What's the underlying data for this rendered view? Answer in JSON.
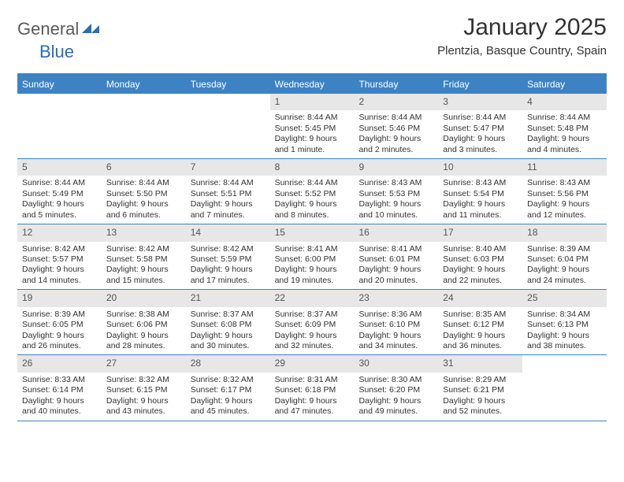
{
  "logo": {
    "general": "General",
    "blue": "Blue"
  },
  "title": "January 2025",
  "subtitle": "Plentzia, Basque Country, Spain",
  "colors": {
    "header_bar": "#3d83c4",
    "daynum_bg": "#e7e7e8",
    "text": "#333333",
    "logo_gray": "#5a5a5a",
    "logo_blue": "#2a6db8",
    "rule": "#3d83c4"
  },
  "weekdays": [
    "Sunday",
    "Monday",
    "Tuesday",
    "Wednesday",
    "Thursday",
    "Friday",
    "Saturday"
  ],
  "weeks": [
    [
      {
        "empty": true
      },
      {
        "empty": true
      },
      {
        "empty": true
      },
      {
        "n": "1",
        "sr": "Sunrise: 8:44 AM",
        "ss": "Sunset: 5:45 PM",
        "d1": "Daylight: 9 hours",
        "d2": "and 1 minute."
      },
      {
        "n": "2",
        "sr": "Sunrise: 8:44 AM",
        "ss": "Sunset: 5:46 PM",
        "d1": "Daylight: 9 hours",
        "d2": "and 2 minutes."
      },
      {
        "n": "3",
        "sr": "Sunrise: 8:44 AM",
        "ss": "Sunset: 5:47 PM",
        "d1": "Daylight: 9 hours",
        "d2": "and 3 minutes."
      },
      {
        "n": "4",
        "sr": "Sunrise: 8:44 AM",
        "ss": "Sunset: 5:48 PM",
        "d1": "Daylight: 9 hours",
        "d2": "and 4 minutes."
      }
    ],
    [
      {
        "n": "5",
        "sr": "Sunrise: 8:44 AM",
        "ss": "Sunset: 5:49 PM",
        "d1": "Daylight: 9 hours",
        "d2": "and 5 minutes."
      },
      {
        "n": "6",
        "sr": "Sunrise: 8:44 AM",
        "ss": "Sunset: 5:50 PM",
        "d1": "Daylight: 9 hours",
        "d2": "and 6 minutes."
      },
      {
        "n": "7",
        "sr": "Sunrise: 8:44 AM",
        "ss": "Sunset: 5:51 PM",
        "d1": "Daylight: 9 hours",
        "d2": "and 7 minutes."
      },
      {
        "n": "8",
        "sr": "Sunrise: 8:44 AM",
        "ss": "Sunset: 5:52 PM",
        "d1": "Daylight: 9 hours",
        "d2": "and 8 minutes."
      },
      {
        "n": "9",
        "sr": "Sunrise: 8:43 AM",
        "ss": "Sunset: 5:53 PM",
        "d1": "Daylight: 9 hours",
        "d2": "and 10 minutes."
      },
      {
        "n": "10",
        "sr": "Sunrise: 8:43 AM",
        "ss": "Sunset: 5:54 PM",
        "d1": "Daylight: 9 hours",
        "d2": "and 11 minutes."
      },
      {
        "n": "11",
        "sr": "Sunrise: 8:43 AM",
        "ss": "Sunset: 5:56 PM",
        "d1": "Daylight: 9 hours",
        "d2": "and 12 minutes."
      }
    ],
    [
      {
        "n": "12",
        "sr": "Sunrise: 8:42 AM",
        "ss": "Sunset: 5:57 PM",
        "d1": "Daylight: 9 hours",
        "d2": "and 14 minutes."
      },
      {
        "n": "13",
        "sr": "Sunrise: 8:42 AM",
        "ss": "Sunset: 5:58 PM",
        "d1": "Daylight: 9 hours",
        "d2": "and 15 minutes."
      },
      {
        "n": "14",
        "sr": "Sunrise: 8:42 AM",
        "ss": "Sunset: 5:59 PM",
        "d1": "Daylight: 9 hours",
        "d2": "and 17 minutes."
      },
      {
        "n": "15",
        "sr": "Sunrise: 8:41 AM",
        "ss": "Sunset: 6:00 PM",
        "d1": "Daylight: 9 hours",
        "d2": "and 19 minutes."
      },
      {
        "n": "16",
        "sr": "Sunrise: 8:41 AM",
        "ss": "Sunset: 6:01 PM",
        "d1": "Daylight: 9 hours",
        "d2": "and 20 minutes."
      },
      {
        "n": "17",
        "sr": "Sunrise: 8:40 AM",
        "ss": "Sunset: 6:03 PM",
        "d1": "Daylight: 9 hours",
        "d2": "and 22 minutes."
      },
      {
        "n": "18",
        "sr": "Sunrise: 8:39 AM",
        "ss": "Sunset: 6:04 PM",
        "d1": "Daylight: 9 hours",
        "d2": "and 24 minutes."
      }
    ],
    [
      {
        "n": "19",
        "sr": "Sunrise: 8:39 AM",
        "ss": "Sunset: 6:05 PM",
        "d1": "Daylight: 9 hours",
        "d2": "and 26 minutes."
      },
      {
        "n": "20",
        "sr": "Sunrise: 8:38 AM",
        "ss": "Sunset: 6:06 PM",
        "d1": "Daylight: 9 hours",
        "d2": "and 28 minutes."
      },
      {
        "n": "21",
        "sr": "Sunrise: 8:37 AM",
        "ss": "Sunset: 6:08 PM",
        "d1": "Daylight: 9 hours",
        "d2": "and 30 minutes."
      },
      {
        "n": "22",
        "sr": "Sunrise: 8:37 AM",
        "ss": "Sunset: 6:09 PM",
        "d1": "Daylight: 9 hours",
        "d2": "and 32 minutes."
      },
      {
        "n": "23",
        "sr": "Sunrise: 8:36 AM",
        "ss": "Sunset: 6:10 PM",
        "d1": "Daylight: 9 hours",
        "d2": "and 34 minutes."
      },
      {
        "n": "24",
        "sr": "Sunrise: 8:35 AM",
        "ss": "Sunset: 6:12 PM",
        "d1": "Daylight: 9 hours",
        "d2": "and 36 minutes."
      },
      {
        "n": "25",
        "sr": "Sunrise: 8:34 AM",
        "ss": "Sunset: 6:13 PM",
        "d1": "Daylight: 9 hours",
        "d2": "and 38 minutes."
      }
    ],
    [
      {
        "n": "26",
        "sr": "Sunrise: 8:33 AM",
        "ss": "Sunset: 6:14 PM",
        "d1": "Daylight: 9 hours",
        "d2": "and 40 minutes."
      },
      {
        "n": "27",
        "sr": "Sunrise: 8:32 AM",
        "ss": "Sunset: 6:15 PM",
        "d1": "Daylight: 9 hours",
        "d2": "and 43 minutes."
      },
      {
        "n": "28",
        "sr": "Sunrise: 8:32 AM",
        "ss": "Sunset: 6:17 PM",
        "d1": "Daylight: 9 hours",
        "d2": "and 45 minutes."
      },
      {
        "n": "29",
        "sr": "Sunrise: 8:31 AM",
        "ss": "Sunset: 6:18 PM",
        "d1": "Daylight: 9 hours",
        "d2": "and 47 minutes."
      },
      {
        "n": "30",
        "sr": "Sunrise: 8:30 AM",
        "ss": "Sunset: 6:20 PM",
        "d1": "Daylight: 9 hours",
        "d2": "and 49 minutes."
      },
      {
        "n": "31",
        "sr": "Sunrise: 8:29 AM",
        "ss": "Sunset: 6:21 PM",
        "d1": "Daylight: 9 hours",
        "d2": "and 52 minutes."
      },
      {
        "empty": true
      }
    ]
  ]
}
